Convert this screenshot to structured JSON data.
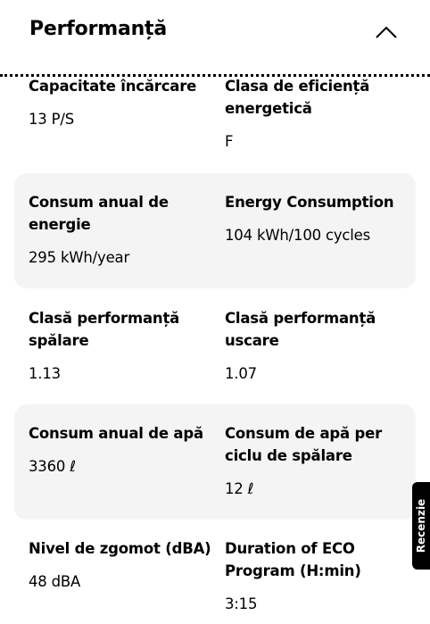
{
  "header": {
    "title": "Performanță",
    "collapse_icon": "chevron-up-icon"
  },
  "rows": [
    {
      "shaded": false,
      "left": {
        "label": "Capacitate încărcare",
        "value": "13 P/S"
      },
      "right": {
        "label": "Clasa de eficiență energetică",
        "value": "F"
      }
    },
    {
      "shaded": true,
      "left": {
        "label": "Consum anual de energie",
        "value": "295 kWh/year"
      },
      "right": {
        "label": "Energy Consumption",
        "value": "104 kWh/100 cycles"
      }
    },
    {
      "shaded": false,
      "left": {
        "label": "Clasă performanță spălare",
        "value": "1.13"
      },
      "right": {
        "label": "Clasă performanță uscare",
        "value": "1.07"
      }
    },
    {
      "shaded": true,
      "left": {
        "label": "Consum anual de apă",
        "value": "3360 ℓ"
      },
      "right": {
        "label": "Consum de apă per ciclu de spălare",
        "value": "12 ℓ"
      }
    },
    {
      "shaded": false,
      "left": {
        "label": "Nivel de zgomot (dBA)",
        "value": "48 dBA"
      },
      "right": {
        "label": "Duration of ECO Program (H:min)",
        "value": "3:15"
      }
    }
  ],
  "review_tab": {
    "label": "Recenzie"
  },
  "colors": {
    "shaded_row": "#f4f4f4",
    "tab_bg": "#000000",
    "text": "#000000"
  }
}
